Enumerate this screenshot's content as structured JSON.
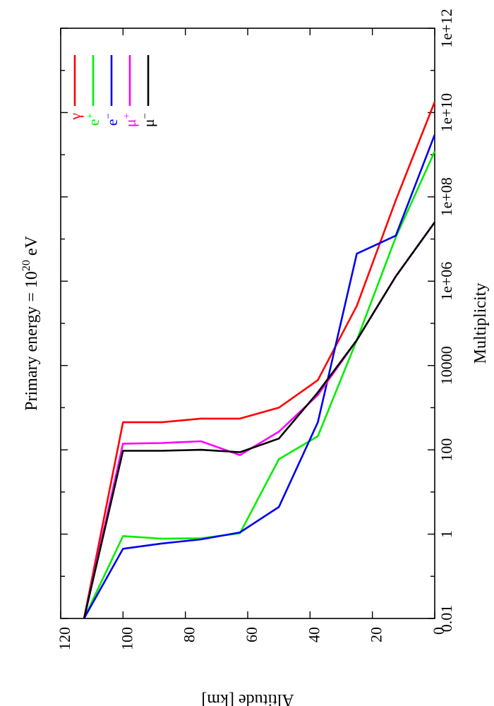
{
  "chart_data": {
    "type": "line",
    "orientation": "rotated-90",
    "title": {
      "main": "Primary energy = 10",
      "sup": "20",
      "unit": " eV"
    },
    "xlabel": "Multiplicity",
    "ylabel": "Altitude [km]",
    "x_scale": "log",
    "xlim": [
      0.01,
      1000000000000
    ],
    "ylim": [
      0,
      120
    ],
    "x_ticks": [
      {
        "value": 0.01,
        "label": "0.01"
      },
      {
        "value": 1,
        "label": "1"
      },
      {
        "value": 100,
        "label": "100"
      },
      {
        "value": 10000,
        "label": "10000"
      },
      {
        "value": 1000000,
        "label": "1e+06"
      },
      {
        "value": 100000000,
        "label": "1e+08"
      },
      {
        "value": 10000000000,
        "label": "1e+10"
      },
      {
        "value": 1000000000000,
        "label": "1e+12"
      }
    ],
    "y_ticks": [
      {
        "value": 0,
        "label": "0"
      },
      {
        "value": 20,
        "label": "20"
      },
      {
        "value": 40,
        "label": "40"
      },
      {
        "value": 60,
        "label": "60"
      },
      {
        "value": 80,
        "label": "80"
      },
      {
        "value": 100,
        "label": "100"
      },
      {
        "value": 120,
        "label": "120"
      }
    ],
    "grid": false,
    "legend_position": "top-right",
    "series": [
      {
        "name": "γ",
        "sup": "",
        "color": "#ff0000",
        "points": [
          [
            0.01,
            112.5
          ],
          [
            450,
            100
          ],
          [
            450,
            87.5
          ],
          [
            550,
            75
          ],
          [
            550,
            62.5
          ],
          [
            1000,
            50
          ],
          [
            4500,
            37.5
          ],
          [
            260000,
            25
          ],
          [
            83000000,
            12.5
          ],
          [
            18000000000,
            0
          ]
        ]
      },
      {
        "name": "e",
        "sup": "+",
        "color": "#00ee00",
        "points": [
          [
            0.01,
            112.5
          ],
          [
            0.9,
            100
          ],
          [
            0.78,
            87.5
          ],
          [
            0.8,
            75
          ],
          [
            1.05,
            62.5
          ],
          [
            60,
            50
          ],
          [
            210,
            37.5
          ],
          [
            40000,
            25
          ],
          [
            11000000,
            12.5
          ],
          [
            1200000000,
            0
          ]
        ]
      },
      {
        "name": "e",
        "sup": "−",
        "color": "#0000ee",
        "points": [
          [
            0.01,
            112.5
          ],
          [
            0.45,
            100
          ],
          [
            0.6,
            87.5
          ],
          [
            0.75,
            75
          ],
          [
            1.1,
            62.5
          ],
          [
            4.4,
            50
          ],
          [
            450,
            37.5
          ],
          [
            4500000,
            25
          ],
          [
            12000000,
            12.5
          ],
          [
            3000000000,
            0
          ]
        ]
      },
      {
        "name": "μ",
        "sup": "+",
        "color": "#ff00ff",
        "points": [
          [
            0.01,
            112.5
          ],
          [
            140,
            100
          ],
          [
            145,
            87.5
          ],
          [
            160,
            75
          ],
          [
            75,
            62.5
          ],
          [
            270,
            50
          ],
          [
            2000,
            37.5
          ],
          [
            40000,
            25
          ],
          [
            1300000,
            12.5
          ],
          [
            25000000,
            0
          ]
        ]
      },
      {
        "name": "μ",
        "sup": "−",
        "color": "#000000",
        "points": [
          [
            0.01,
            112.5
          ],
          [
            95,
            100
          ],
          [
            95,
            87.5
          ],
          [
            100,
            75
          ],
          [
            88,
            62.5
          ],
          [
            185,
            50
          ],
          [
            2300,
            37.5
          ],
          [
            40000,
            25
          ],
          [
            1300000,
            12.5
          ],
          [
            25000000,
            0
          ]
        ]
      }
    ]
  }
}
